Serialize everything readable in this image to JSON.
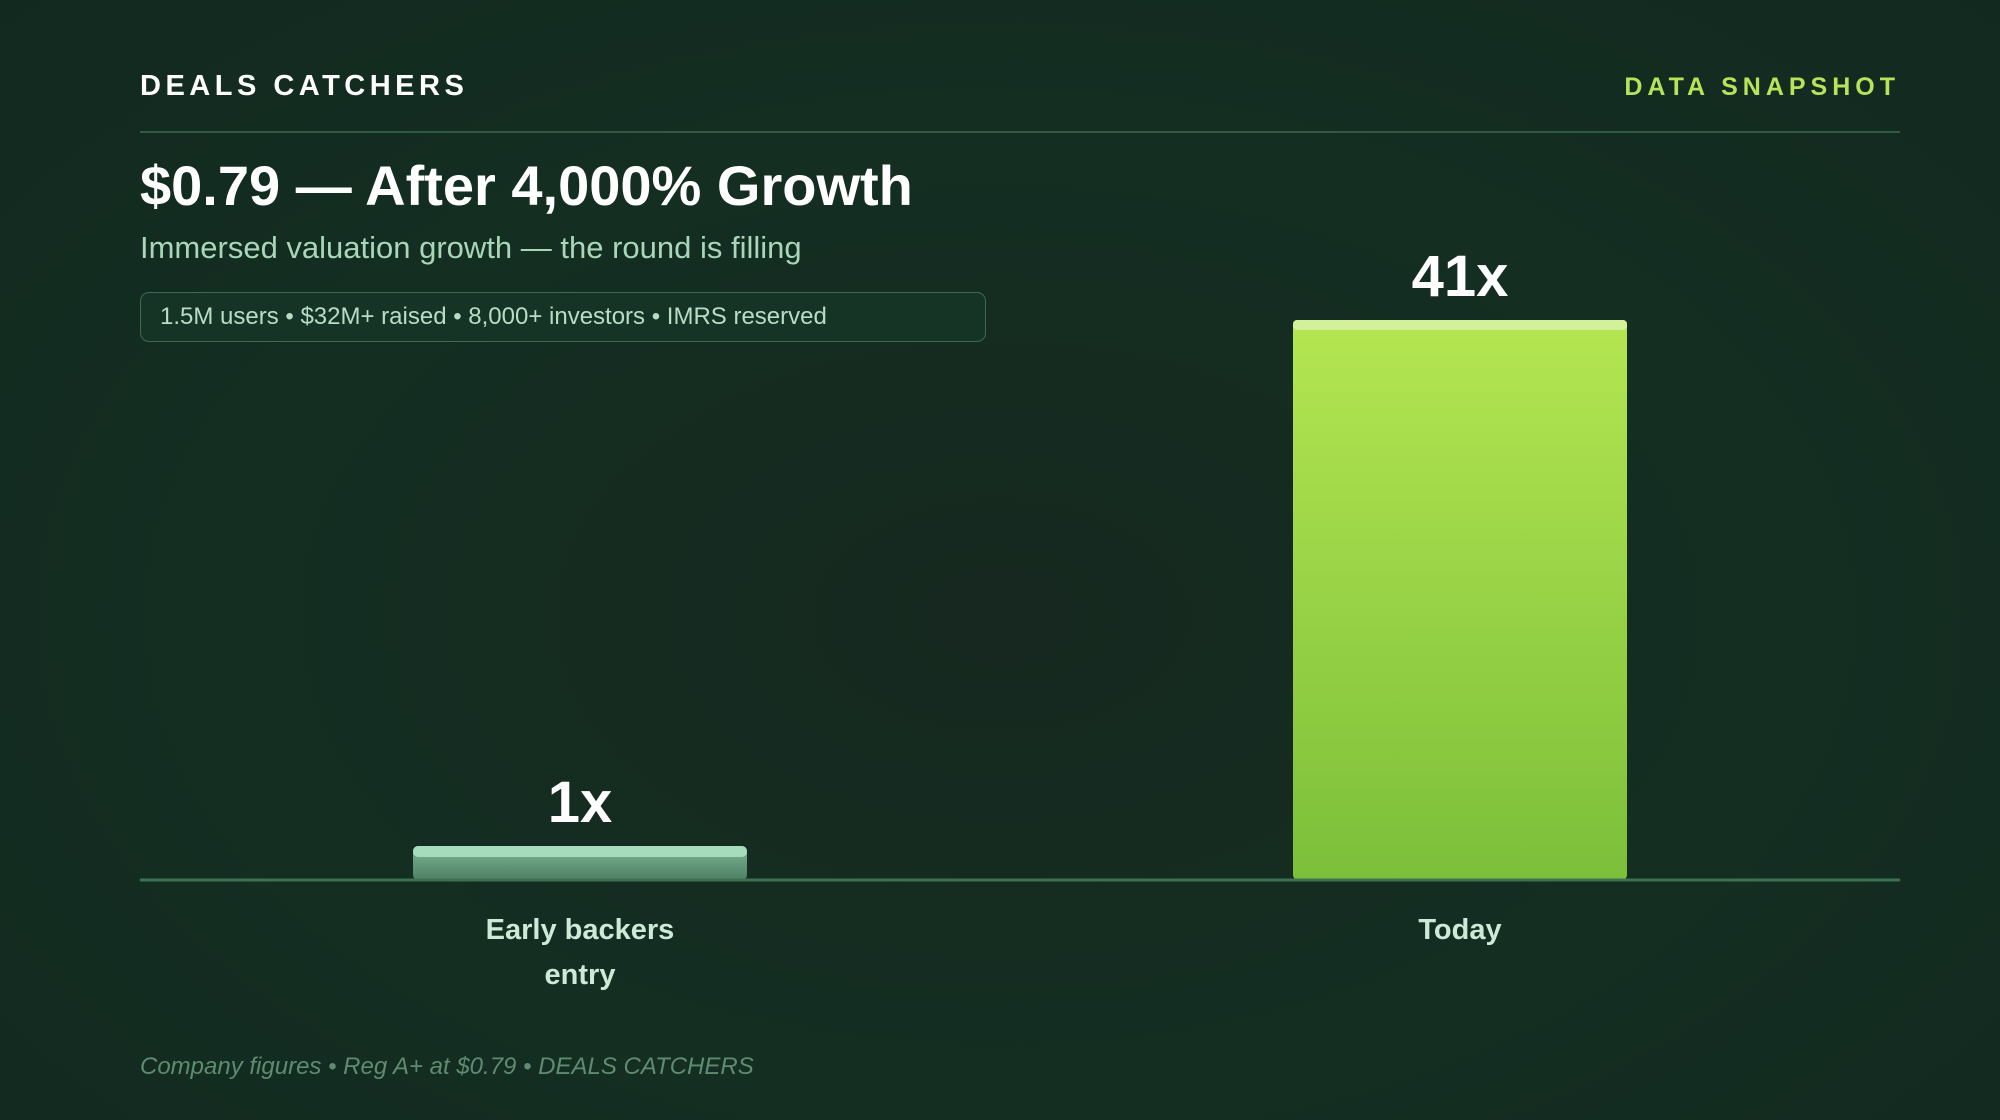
{
  "header": {
    "brand": "DEALS CATCHERS",
    "tag": "DATA SNAPSHOT"
  },
  "title": "$0.79 — After 4,000% Growth",
  "subtitle": "Immersed valuation growth — the round is filling",
  "stats_pill": "1.5M users • $32M+ raised • 8,000+ investors • IMRS reserved",
  "footer": "Company figures • Reg A+ at $0.79 • DEALS CATCHERS",
  "chart_data": {
    "type": "bar",
    "categories": [
      [
        "Early backers",
        "entry"
      ],
      [
        "Today"
      ]
    ],
    "values": [
      1,
      41
    ],
    "data_labels": [
      "1x",
      "41x"
    ],
    "ylim": [
      0,
      41
    ],
    "grid": false,
    "legend": "none",
    "colors": {
      "bar_early": "#6fa384",
      "bar_early_top": "#a6dbbb",
      "bar_today_top": "#b4e651",
      "bar_today_bottom": "#7cbf3a",
      "bar_today_cap": "#d3f19a",
      "baseline": "#3e7052",
      "category_label": "#cfe9d8",
      "value_label": "#ffffff"
    }
  }
}
